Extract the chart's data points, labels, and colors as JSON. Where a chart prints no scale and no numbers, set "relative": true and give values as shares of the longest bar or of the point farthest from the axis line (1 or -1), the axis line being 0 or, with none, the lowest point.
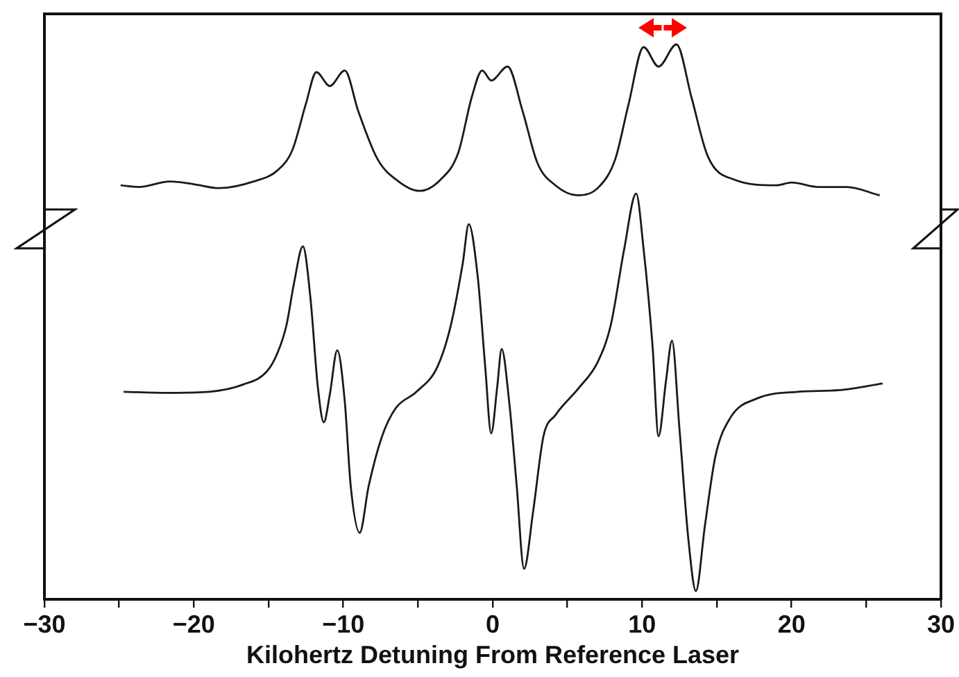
{
  "chart_data": {
    "type": "line",
    "relative": true,
    "xlabel": "Kilohertz Detuning From Reference Laser",
    "xlim": [
      -30,
      30
    ],
    "xticks": [
      {
        "value": -30,
        "label": "−30"
      },
      {
        "value": -25,
        "label": null
      },
      {
        "value": -20,
        "label": "−20"
      },
      {
        "value": -15,
        "label": null
      },
      {
        "value": -10,
        "label": "−10"
      },
      {
        "value": -5,
        "label": null
      },
      0,
      {
        "value": 5,
        "label": null
      },
      10,
      {
        "value": 15,
        "label": null
      },
      20,
      {
        "value": 25,
        "label": null
      },
      30
    ],
    "grid": false,
    "legend": false,
    "marker": "none",
    "line_style": "solid",
    "series": [
      {
        "color": "#1a1a1a",
        "x": [
          -24.9,
          -23.7,
          -21.6,
          -20.0,
          -18.3,
          -16.0,
          -14.4,
          -13.4,
          -12.5,
          -11.8,
          -10.9,
          -9.9,
          -9.0,
          -7.7,
          -6.3,
          -4.9,
          -3.5,
          -2.3,
          -1.4,
          -0.7,
          -0.1,
          1.0,
          2.0,
          3.0,
          4.2,
          5.7,
          7.1,
          8.2,
          9.1,
          10.1,
          11.1,
          12.3,
          13.3,
          14.4,
          16.2,
          19.0,
          20.0,
          21.8,
          23.7,
          25.9
        ],
        "values": [
          0.746,
          0.743,
          0.753,
          0.748,
          0.741,
          0.753,
          0.773,
          0.81,
          0.893,
          0.95,
          0.925,
          0.953,
          0.88,
          0.793,
          0.753,
          0.736,
          0.756,
          0.805,
          0.905,
          0.953,
          0.935,
          0.96,
          0.88,
          0.786,
          0.746,
          0.728,
          0.743,
          0.793,
          0.893,
          0.995,
          0.96,
          1.0,
          0.905,
          0.798,
          0.756,
          0.746,
          0.751,
          0.743,
          0.743,
          0.728
        ]
      },
      {
        "color": "#1a1a1a",
        "x": [
          -24.7,
          -21.8,
          -19.0,
          -16.7,
          -15.1,
          -14.4,
          -13.8,
          -13.3,
          -12.7,
          -12.2,
          -11.7,
          -11.3,
          -10.9,
          -10.4,
          -9.9,
          -9.5,
          -8.9,
          -8.3,
          -7.4,
          -6.5,
          -5.1,
          -3.7,
          -2.8,
          -2.0,
          -1.6,
          -1.0,
          -0.5,
          -0.1,
          0.3,
          0.6,
          1.1,
          1.6,
          2.1,
          2.7,
          3.4,
          4.2,
          5.8,
          7.0,
          7.9,
          8.8,
          9.6,
          10.1,
          10.7,
          11.1,
          11.6,
          12.0,
          12.5,
          13.1,
          13.6,
          14.2,
          14.9,
          15.9,
          17.7,
          20.4,
          23.2,
          26.1
        ],
        "values": [
          0.374,
          0.372,
          0.374,
          0.387,
          0.411,
          0.444,
          0.494,
          0.569,
          0.636,
          0.544,
          0.382,
          0.319,
          0.369,
          0.449,
          0.357,
          0.204,
          0.12,
          0.204,
          0.294,
          0.344,
          0.374,
          0.419,
          0.494,
          0.606,
          0.676,
          0.581,
          0.419,
          0.299,
          0.382,
          0.451,
          0.357,
          0.207,
          0.055,
          0.157,
          0.294,
          0.332,
          0.382,
          0.426,
          0.494,
          0.631,
          0.731,
          0.631,
          0.456,
          0.294,
          0.394,
          0.466,
          0.307,
          0.107,
          0.015,
          0.132,
          0.257,
          0.327,
          0.362,
          0.374,
          0.377,
          0.389
        ]
      }
    ]
  }
}
